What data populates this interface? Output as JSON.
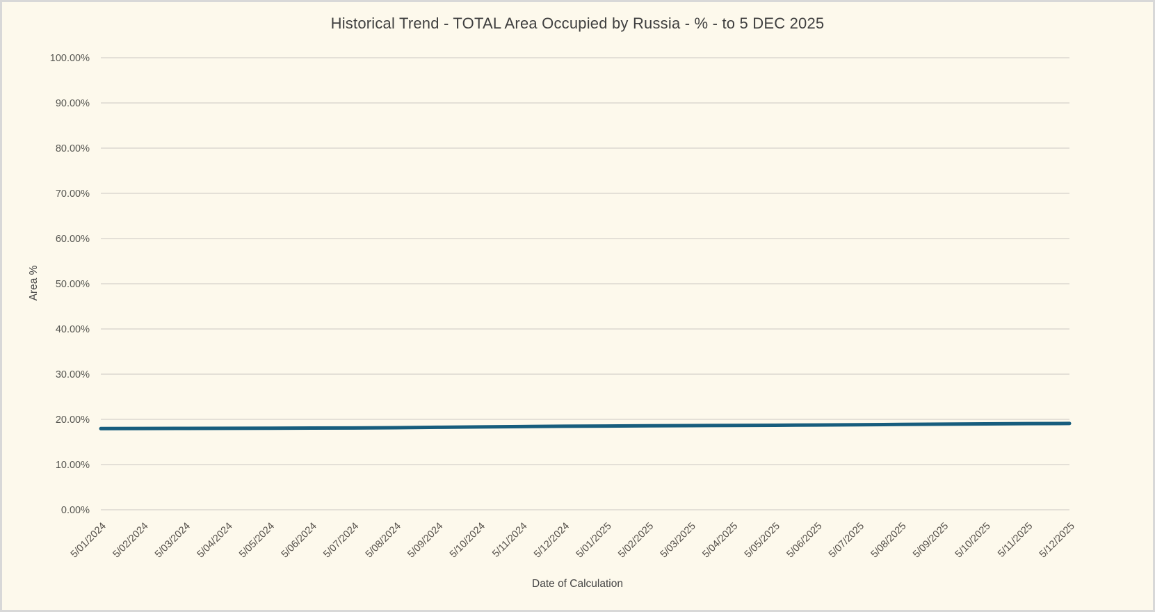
{
  "window": {
    "background": "#FDF9EC",
    "frame_border_color": "#D8D8D8"
  },
  "chart_data": {
    "type": "line",
    "title": "Historical Trend - TOTAL Area Occupied by Russia - % - to 5 DEC 2025",
    "xlabel": "Date of Calculation",
    "ylabel": "Area %",
    "categories": [
      "5/01/2024",
      "5/02/2024",
      "5/03/2024",
      "5/04/2024",
      "5/05/2024",
      "5/06/2024",
      "5/07/2024",
      "5/08/2024",
      "5/09/2024",
      "5/10/2024",
      "5/11/2024",
      "5/12/2024",
      "5/01/2025",
      "5/02/2025",
      "5/03/2025",
      "5/04/2025",
      "5/05/2025",
      "5/06/2025",
      "5/07/2025",
      "5/08/2025",
      "5/09/2025",
      "5/10/2025",
      "5/11/2025",
      "5/12/2025"
    ],
    "values": [
      17.96,
      17.98,
      18.0,
      18.02,
      18.04,
      18.07,
      18.1,
      18.16,
      18.24,
      18.32,
      18.4,
      18.47,
      18.52,
      18.57,
      18.62,
      18.65,
      18.7,
      18.76,
      18.82,
      18.88,
      18.94,
      19.0,
      19.06,
      19.1
    ],
    "ylim": [
      0,
      100
    ],
    "y_tick_labels": [
      "0.00%",
      "10.00%",
      "20.00%",
      "30.00%",
      "40.00%",
      "50.00%",
      "60.00%",
      "70.00%",
      "80.00%",
      "90.00%",
      "100.00%"
    ],
    "grid": true,
    "legend": "none",
    "line_color": "#175D7D",
    "gridline_color": "#DBD8D0"
  }
}
